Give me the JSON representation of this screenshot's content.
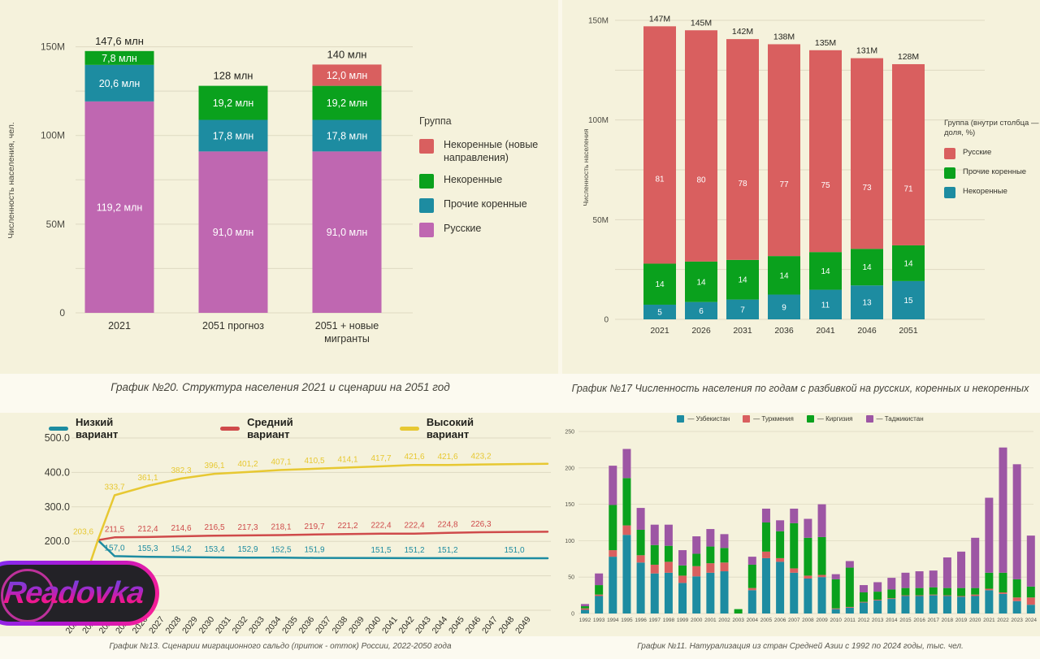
{
  "page": {
    "background": "#f5f2dc",
    "band_color": "#fcfaf0",
    "grid_color": "#ded9c2",
    "axis_text_color": "#4b4a42"
  },
  "logo": {
    "text": "Readovka"
  },
  "captions": {
    "top_left": "График №20. Структура населения 2021 и сценарии на 2051 год",
    "top_right": "График №17 Численность населения по годам с разбивкой на русских, коренных и некоренных",
    "bottom_left": "График №13. Сценарии миграционного сальдо (приток - отток) России, 2022-2050 года",
    "bottom_right": "График №11. Натурализация из стран Средней Азии с 1992 по 2024 годы, тыс. чел."
  },
  "chart_data": [
    {
      "id": "population_structure",
      "type": "bar",
      "stacked": true,
      "title": "График №20. Структура населения 2021 и сценарии на 2051 год",
      "ylabel": "Численность населения, чел.",
      "ylim_mln": [
        0,
        150
      ],
      "grid_step_mln": 25,
      "yticks": [
        {
          "v": 0,
          "label": "0"
        },
        {
          "v": 50,
          "label": "50M"
        },
        {
          "v": 100,
          "label": "100M"
        },
        {
          "v": 150,
          "label": "150M"
        }
      ],
      "categories": [
        "2021",
        "2051 прогноз",
        "2051 + новые\nмигранты"
      ],
      "series": [
        {
          "name": "Русские",
          "color": "#bf67b1",
          "values_mln": [
            119.2,
            91.0,
            91.0
          ],
          "labels": [
            "119,2 млн",
            "91,0 млн",
            "91,0 млн"
          ]
        },
        {
          "name": "Прочие коренные",
          "color": "#1d8ca1",
          "values_mln": [
            20.6,
            17.8,
            17.8
          ],
          "labels": [
            "20,6 млн",
            "17,8 млн",
            "17,8 млн"
          ]
        },
        {
          "name": "Некоренные",
          "color": "#0aa11d",
          "values_mln": [
            7.8,
            19.2,
            19.2
          ],
          "labels": [
            "7,8 млн",
            "19,2 млн",
            "19,2 млн"
          ]
        },
        {
          "name": "Некоренные (новые направления)",
          "color": "#d95f5f",
          "values_mln": [
            0,
            0,
            12.0
          ],
          "labels": [
            "",
            "",
            "12,0 млн"
          ]
        }
      ],
      "totals": [
        "147,6 млн",
        "128 млн",
        "140 млн"
      ],
      "legend": {
        "title": "Группа",
        "items": [
          {
            "label": "Некоренные (новые направления)",
            "color": "#d95f5f"
          },
          {
            "label": "Некоренные",
            "color": "#0aa11d"
          },
          {
            "label": "Прочие коренные",
            "color": "#1d8ca1"
          },
          {
            "label": "Русские",
            "color": "#bf67b1"
          }
        ]
      }
    },
    {
      "id": "population_by_year_shares",
      "type": "bar",
      "stacked": true,
      "title": "График №17 Численность населения по годам с разбивкой на русских, коренных и некоренных",
      "ylabel": "Численность населения",
      "ylim_mln": [
        0,
        150
      ],
      "grid_step_mln": 25,
      "yticks": [
        {
          "v": 0,
          "label": "0"
        },
        {
          "v": 50,
          "label": "50M"
        },
        {
          "v": 100,
          "label": "100M"
        },
        {
          "v": 150,
          "label": "150M"
        }
      ],
      "categories": [
        "2021",
        "2026",
        "2031",
        "2036",
        "2041",
        "2046",
        "2051"
      ],
      "totals_mln": [
        147,
        145,
        142,
        138,
        135,
        131,
        128
      ],
      "totals_labels": [
        "147M",
        "145M",
        "142M",
        "138M",
        "135M",
        "131M",
        "128M"
      ],
      "series": [
        {
          "name": "Некоренные",
          "color": "#1d8ca1",
          "share_pct": [
            5,
            6,
            7,
            9,
            11,
            13,
            15
          ]
        },
        {
          "name": "Прочие коренные",
          "color": "#0aa11d",
          "share_pct": [
            14,
            14,
            14,
            14,
            14,
            14,
            14
          ]
        },
        {
          "name": "Русские",
          "color": "#d95f5f",
          "share_pct": [
            81,
            80,
            78,
            77,
            75,
            73,
            71
          ]
        }
      ],
      "legend": {
        "title": "Группа (внутри столбца — доля, %)",
        "items": [
          {
            "label": "Русские",
            "color": "#d95f5f"
          },
          {
            "label": "Прочие коренные",
            "color": "#0aa11d"
          },
          {
            "label": "Некоренные",
            "color": "#1d8ca1"
          }
        ]
      }
    },
    {
      "id": "migration_scenarios",
      "type": "line",
      "title": "График №13. Сценарии миграционного сальдо (приток - отток) России, 2022-2050 года",
      "ylim": [
        0,
        500
      ],
      "grid_step": 100,
      "yticks": [
        {
          "v": 200,
          "label": "200.0"
        },
        {
          "v": 300,
          "label": "300.0"
        },
        {
          "v": 400,
          "label": "400.0"
        },
        {
          "v": 500,
          "label": "500.0"
        }
      ],
      "x_years": [
        2022,
        2023,
        2024,
        2025,
        2026,
        2027,
        2028,
        2029,
        2030,
        2031,
        2032,
        2033,
        2034,
        2035,
        2036,
        2037,
        2038,
        2039,
        2040,
        2041,
        2042,
        2043,
        2044,
        2045,
        2046,
        2047,
        2048,
        2049
      ],
      "series": [
        {
          "name": "Низкий вариант",
          "color": "#1d8ca1",
          "points": [
            [
              2023,
              203.6
            ],
            [
              2024,
              157.0
            ],
            [
              2026,
              155.3
            ],
            [
              2028,
              154.2
            ],
            [
              2030,
              153.4
            ],
            [
              2032,
              152.9
            ],
            [
              2034,
              152.5
            ],
            [
              2036,
              151.9
            ],
            [
              2040,
              151.5
            ],
            [
              2042,
              151.2
            ],
            [
              2044,
              151.2
            ],
            [
              2048,
              151.0
            ],
            [
              2050,
              151.0
            ]
          ],
          "labels": [
            [
              2024,
              "157,0"
            ],
            [
              2026,
              "155,3"
            ],
            [
              2028,
              "154,2"
            ],
            [
              2030,
              "153,4"
            ],
            [
              2032,
              "152,9"
            ],
            [
              2034,
              "152,5"
            ],
            [
              2036,
              "151,9"
            ],
            [
              2040,
              "151,5"
            ],
            [
              2042,
              "151,2"
            ],
            [
              2044,
              "151,2"
            ],
            [
              2048,
              "151,0"
            ]
          ]
        },
        {
          "name": "Средний вариант",
          "color": "#cf4a4a",
          "points": [
            [
              2023,
              203.6
            ],
            [
              2024,
              211.5
            ],
            [
              2026,
              212.4
            ],
            [
              2028,
              214.6
            ],
            [
              2030,
              216.5
            ],
            [
              2032,
              217.3
            ],
            [
              2034,
              218.1
            ],
            [
              2036,
              219.7
            ],
            [
              2038,
              221.2
            ],
            [
              2040,
              222.4
            ],
            [
              2042,
              222.4
            ],
            [
              2044,
              224.8
            ],
            [
              2046,
              226.3
            ],
            [
              2050,
              227.8
            ]
          ],
          "labels": [
            [
              2024,
              "211,5"
            ],
            [
              2026,
              "212,4"
            ],
            [
              2028,
              "214,6"
            ],
            [
              2030,
              "216,5"
            ],
            [
              2032,
              "217,3"
            ],
            [
              2034,
              "218,1"
            ],
            [
              2036,
              "219,7"
            ],
            [
              2038,
              "221,2"
            ],
            [
              2040,
              "222,4"
            ],
            [
              2042,
              "222,4"
            ],
            [
              2044,
              "224,8"
            ],
            [
              2046,
              "226,3"
            ]
          ]
        },
        {
          "name": "Высокий вариант",
          "color": "#e7c832",
          "points": [
            [
              2022,
              60
            ],
            [
              2023,
              203.6
            ],
            [
              2024,
              333.7
            ],
            [
              2026,
              361.1
            ],
            [
              2028,
              382.3
            ],
            [
              2030,
              396.1
            ],
            [
              2032,
              401.2
            ],
            [
              2034,
              407.1
            ],
            [
              2036,
              410.5
            ],
            [
              2038,
              414.1
            ],
            [
              2040,
              417.7
            ],
            [
              2042,
              421.6
            ],
            [
              2044,
              421.6
            ],
            [
              2046,
              423.2
            ],
            [
              2050,
              425.0
            ]
          ],
          "labels": [
            [
              2023,
              "203,6"
            ],
            [
              2024,
              "333,7"
            ],
            [
              2026,
              "361,1"
            ],
            [
              2028,
              "382,3"
            ],
            [
              2030,
              "396,1"
            ],
            [
              2032,
              "401,2"
            ],
            [
              2034,
              "407,1"
            ],
            [
              2036,
              "410,5"
            ],
            [
              2038,
              "414,1"
            ],
            [
              2040,
              "417,7"
            ],
            [
              2042,
              "421,6"
            ],
            [
              2044,
              "421,6"
            ],
            [
              2046,
              "423,2"
            ]
          ]
        }
      ],
      "legend": {
        "items": [
          {
            "label": "Низкий вариант",
            "color": "#1d8ca1"
          },
          {
            "label": "Средний вариант",
            "color": "#cf4a4a"
          },
          {
            "label": "Высокий вариант",
            "color": "#e7c832"
          }
        ]
      }
    },
    {
      "id": "naturalization_central_asia",
      "type": "bar",
      "stacked": true,
      "title": "График №11. Натурализация из стран Средней Азии с 1992 по 2024 годы, тыс. чел.",
      "ylim": [
        0,
        250
      ],
      "grid_step": 50,
      "yticks": [
        {
          "v": 0,
          "label": "0"
        },
        {
          "v": 50,
          "label": "50"
        },
        {
          "v": 100,
          "label": "100"
        },
        {
          "v": 150,
          "label": "150"
        },
        {
          "v": 200,
          "label": "200"
        },
        {
          "v": 250,
          "label": "250"
        }
      ],
      "categories": [
        "1992",
        "1993",
        "1994",
        "1995",
        "1996",
        "1997",
        "1998",
        "1999",
        "2000",
        "2001",
        "2002",
        "2003",
        "2004",
        "2005",
        "2006",
        "2007",
        "2008",
        "2009",
        "2010",
        "2011",
        "2012",
        "2013",
        "2014",
        "2015",
        "2016",
        "2017",
        "2018",
        "2019",
        "2020",
        "2021",
        "2022",
        "2023",
        "2024"
      ],
      "series": [
        {
          "name": "Узбекистан",
          "color": "#1d8ca1",
          "values": [
            5,
            24,
            78,
            108,
            70,
            55,
            56,
            42,
            51,
            56,
            58,
            0,
            32,
            76,
            71,
            56,
            48,
            50,
            6,
            8,
            15,
            18,
            20,
            24,
            24,
            25,
            24,
            23,
            24,
            32,
            27,
            17,
            12
          ]
        },
        {
          "name": "Туркмения",
          "color": "#d95f5f",
          "values": [
            2,
            2,
            9,
            13,
            10,
            12,
            15,
            10,
            14,
            13,
            12,
            0,
            3,
            9,
            5,
            6,
            4,
            3,
            1,
            1,
            1,
            1,
            1,
            1,
            1,
            1,
            1,
            1,
            2,
            2,
            2,
            5,
            10
          ]
        },
        {
          "name": "Киргизия",
          "color": "#0aa11d",
          "values": [
            3,
            13,
            62,
            65,
            35,
            27,
            22,
            14,
            17,
            23,
            20,
            6,
            32,
            40,
            37,
            62,
            52,
            52,
            40,
            54,
            13,
            11,
            12,
            10,
            10,
            10,
            10,
            11,
            9,
            22,
            27,
            25,
            15
          ]
        },
        {
          "name": "Таджикистан",
          "color": "#9d56a4",
          "values": [
            3,
            16,
            54,
            40,
            30,
            28,
            29,
            21,
            24,
            24,
            19,
            0,
            11,
            19,
            15,
            20,
            26,
            45,
            7,
            9,
            10,
            13,
            16,
            21,
            23,
            23,
            42,
            50,
            69,
            103,
            172,
            158,
            70
          ]
        }
      ],
      "legend": {
        "items": [
          {
            "label": "— Узбекистан",
            "color": "#1d8ca1"
          },
          {
            "label": "— Туркмения",
            "color": "#d95f5f"
          },
          {
            "label": "— Киргизия",
            "color": "#0aa11d"
          },
          {
            "label": "— Таджикистан",
            "color": "#9d56a4"
          }
        ]
      }
    }
  ]
}
